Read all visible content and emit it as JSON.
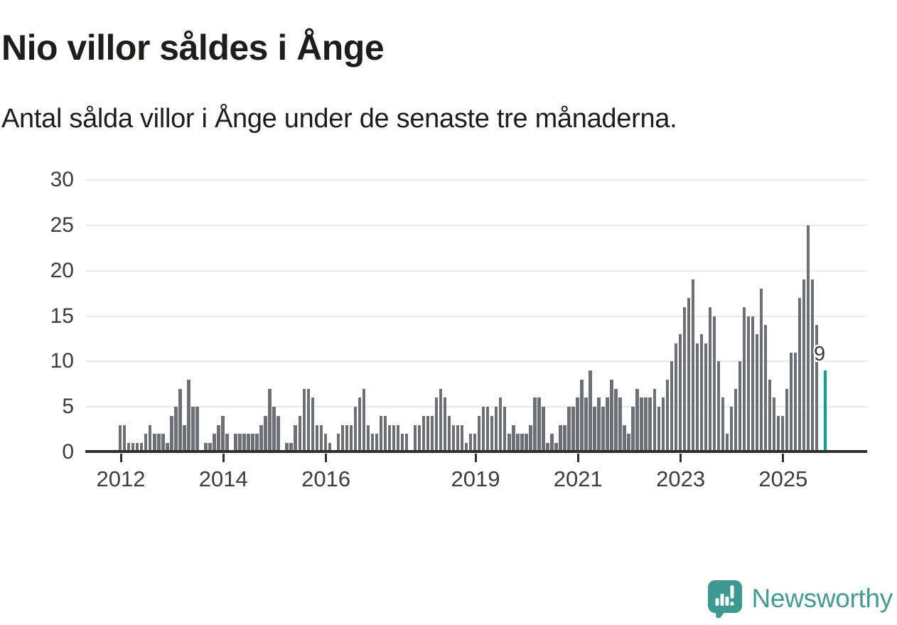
{
  "header": {
    "title": "Nio villor såldes i Ånge",
    "subtitle": "Antal sålda villor i Ånge under de senaste tre månaderna."
  },
  "chart_data": {
    "type": "bar",
    "title": "Nio villor såldes i Ånge",
    "subtitle": "Antal sålda villor i Ånge under de senaste tre månaderna.",
    "ylabel": "",
    "xlabel": "",
    "ylim": [
      0,
      30
    ],
    "y_ticks": [
      0,
      5,
      10,
      15,
      20,
      25,
      30
    ],
    "grid": "horizontal",
    "x_ticks": [
      {
        "label": "2012",
        "index": 0
      },
      {
        "label": "2014",
        "index": 24
      },
      {
        "label": "2016",
        "index": 48
      },
      {
        "label": "2019",
        "index": 83
      },
      {
        "label": "2021",
        "index": 107
      },
      {
        "label": "2023",
        "index": 131
      },
      {
        "label": "2025",
        "index": 155
      }
    ],
    "values": [
      3,
      3,
      1,
      1,
      1,
      1,
      2,
      3,
      2,
      2,
      2,
      1,
      4,
      5,
      7,
      3,
      8,
      5,
      5,
      0,
      1,
      1,
      2,
      3,
      4,
      2,
      0,
      2,
      2,
      2,
      2,
      2,
      2,
      3,
      4,
      7,
      5,
      4,
      0,
      1,
      1,
      3,
      4,
      7,
      7,
      6,
      3,
      3,
      2,
      1,
      0,
      2,
      3,
      3,
      3,
      5,
      6,
      7,
      3,
      2,
      2,
      4,
      4,
      3,
      3,
      3,
      2,
      2,
      0,
      3,
      3,
      4,
      4,
      4,
      6,
      7,
      6,
      4,
      3,
      3,
      3,
      1,
      2,
      2,
      4,
      5,
      5,
      4,
      5,
      6,
      5,
      2,
      3,
      2,
      2,
      2,
      3,
      6,
      6,
      5,
      1,
      2,
      1,
      3,
      3,
      5,
      5,
      6,
      8,
      6,
      9,
      5,
      6,
      5,
      6,
      8,
      7,
      6,
      3,
      2,
      5,
      7,
      6,
      6,
      6,
      7,
      5,
      6,
      8,
      10,
      12,
      13,
      16,
      17,
      19,
      12,
      13,
      12,
      16,
      15,
      10,
      6,
      2,
      5,
      7,
      10,
      16,
      15,
      15,
      13,
      18,
      14,
      8,
      6,
      4,
      4,
      7,
      11,
      11,
      17,
      19,
      25,
      19,
      14,
      0,
      9
    ],
    "highlight": {
      "position": "last",
      "value": 9,
      "label": "9"
    },
    "colors": {
      "bar": "#6e6e76",
      "highlight_bar": "#00a39c",
      "gridline": "#e9e9e9",
      "axis": "#2f2f2f",
      "text": "#3c3c3c"
    }
  },
  "footer": {
    "brand_name": "Newsworthy",
    "brand_color": "#3f9d95"
  }
}
